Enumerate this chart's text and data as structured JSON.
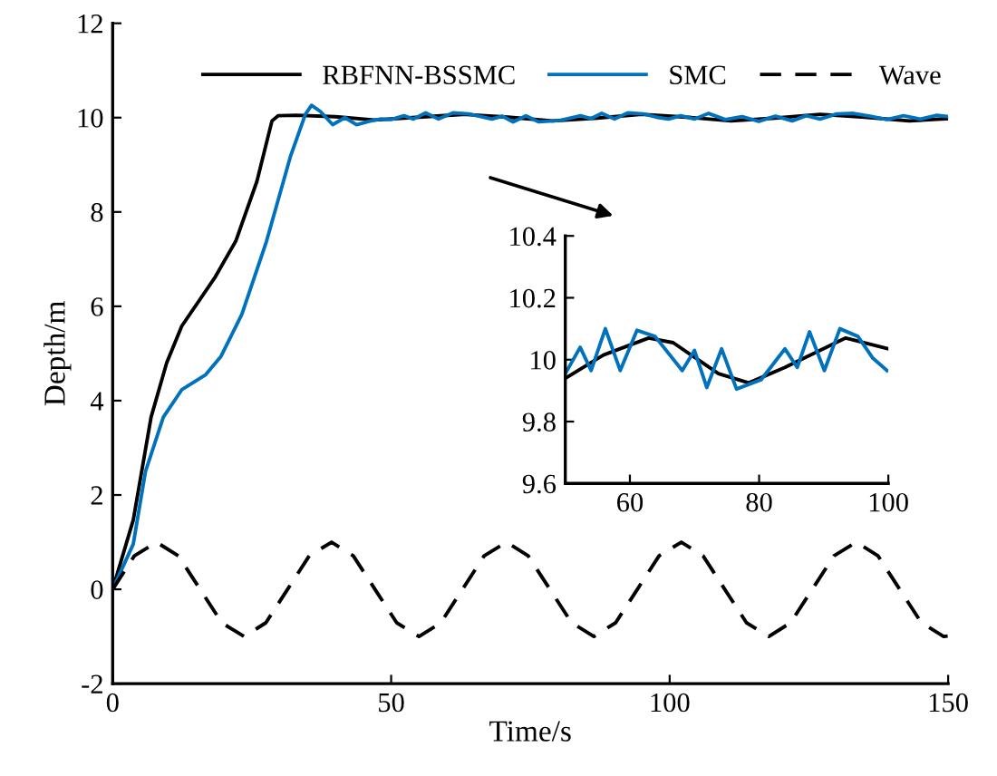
{
  "chart_data": [
    {
      "type": "line",
      "xlabel": "Time/s",
      "ylabel": "Depth/m",
      "xlim": [
        0,
        150
      ],
      "ylim": [
        -2,
        12
      ],
      "xticks": [
        0,
        50,
        100,
        150
      ],
      "yticks": [
        -2,
        0,
        2,
        4,
        6,
        8,
        10,
        12
      ],
      "legend": "top",
      "grid": false,
      "marker": "none",
      "series": [
        {
          "name": "RBFNN-BSSMC",
          "color": "#000000",
          "line_style": "solid",
          "x": [
            0,
            3.7,
            6.9,
            9.7,
            12.4,
            18.3,
            22.1,
            25.9,
            28.6,
            29.7,
            33,
            40,
            47,
            55,
            63,
            71,
            79,
            87,
            95,
            103,
            111,
            119,
            127,
            135,
            143,
            150
          ],
          "values": [
            0,
            1.47,
            3.65,
            4.8,
            5.58,
            6.6,
            7.38,
            8.65,
            9.93,
            10.04,
            10.05,
            10.02,
            9.95,
            10.01,
            10.07,
            10.01,
            9.93,
            9.99,
            10.07,
            10.01,
            9.93,
            9.99,
            10.07,
            10.01,
            9.93,
            9.98
          ]
        },
        {
          "name": "SMC",
          "color": "#0072bd",
          "line_style": "solid",
          "x": [
            0,
            3.7,
            5.9,
            9.1,
            12.4,
            16.7,
            19.4,
            23.2,
            27.6,
            31.9,
            34.6,
            35.7,
            37.3,
            39.5,
            41.7,
            43.8,
            46,
            48,
            50,
            52.3,
            54,
            56.2,
            58.5,
            61.1,
            63.9,
            68.1,
            70,
            71.9,
            74.2,
            76.5,
            80.3,
            84,
            85.9,
            87.8,
            90.1,
            92.5,
            95.3,
            97.6,
            99.8,
            102,
            104.5,
            107,
            110,
            113,
            116,
            119,
            122,
            124.5,
            127,
            130,
            133,
            136,
            139,
            142,
            145,
            148,
            150
          ],
          "values": [
            0,
            0.96,
            2.5,
            3.65,
            4.23,
            4.55,
            4.93,
            5.83,
            7.37,
            9.17,
            10.07,
            10.26,
            10.13,
            9.85,
            10.0,
            9.85,
            9.92,
            9.97,
            9.96,
            10.04,
            9.97,
            10.1,
            9.97,
            10.1,
            10.08,
            9.97,
            10.03,
            9.91,
            10.04,
            9.91,
            9.94,
            10.04,
            9.98,
            10.09,
            9.97,
            10.1,
            10.08,
            10.01,
            9.97,
            10.04,
            9.97,
            10.09,
            9.96,
            10.02,
            9.92,
            10.03,
            9.93,
            10.04,
            9.97,
            10.08,
            10.09,
            10.03,
            9.96,
            10.04,
            9.97,
            10.05,
            10.02
          ]
        },
        {
          "name": "Wave",
          "color": "#000000",
          "line_style": "dashed",
          "x": [
            0,
            3.9,
            7.85,
            11.8,
            15.7,
            19.6,
            23.6,
            27.5,
            31.4,
            35.3,
            39.3,
            43.2,
            47.1,
            51,
            55,
            58.9,
            62.8,
            66.7,
            70.7,
            74.6,
            78.5,
            82.4,
            86.4,
            90.3,
            94.2,
            98.1,
            102.1,
            106,
            109.9,
            113.8,
            117.8,
            121.7,
            125.6,
            129.5,
            133.5,
            137.4,
            141.3,
            145.2,
            149.2,
            150
          ],
          "values": [
            0,
            0.71,
            1,
            0.71,
            0,
            -0.71,
            -1,
            -0.71,
            0,
            0.71,
            1,
            0.71,
            0,
            -0.71,
            -1,
            -0.71,
            0,
            0.71,
            1,
            0.71,
            0,
            -0.71,
            -1,
            -0.71,
            0,
            0.71,
            1,
            0.71,
            0,
            -0.71,
            -1,
            -0.71,
            0,
            0.71,
            1,
            0.71,
            0,
            -0.71,
            -1,
            -0.99
          ]
        }
      ]
    },
    {
      "type": "line",
      "xlim": [
        50,
        100
      ],
      "ylim": [
        9.6,
        10.4
      ],
      "xticks": [
        60,
        80,
        100
      ],
      "yticks": [
        9.6,
        9.8,
        10,
        10.2,
        10.4
      ],
      "grid": false,
      "marker": "none",
      "series": [
        {
          "color": "#000000",
          "line_style": "solid",
          "x": [
            50,
            55.9,
            62.9,
            66.7,
            73.7,
            78.4,
            84,
            93.4,
            100
          ],
          "values": [
            9.94,
            10.015,
            10.07,
            10.055,
            9.955,
            9.925,
            9.975,
            10.07,
            10.035
          ]
        },
        {
          "color": "#0072bd",
          "line_style": "solid",
          "x": [
            50,
            52.3,
            54,
            56.2,
            58.5,
            61.1,
            63.9,
            68.1,
            70,
            71.9,
            74.2,
            76.5,
            80.3,
            84,
            85.9,
            87.8,
            90.1,
            92.5,
            95.3,
            97.6,
            99.8
          ],
          "values": [
            9.955,
            10.04,
            9.965,
            10.1,
            9.965,
            10.095,
            10.075,
            9.965,
            10.03,
            9.91,
            10.035,
            9.905,
            9.935,
            10.035,
            9.975,
            10.09,
            9.965,
            10.1,
            10.075,
            10.005,
            9.965
          ]
        }
      ]
    }
  ]
}
